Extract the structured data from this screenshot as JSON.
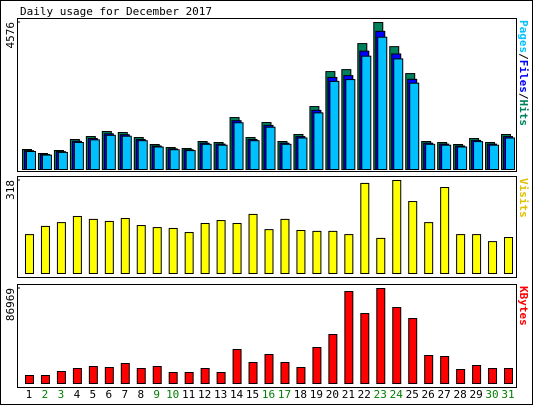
{
  "chart_data": {
    "type": "bar",
    "title": "Daily usage for December 2017",
    "categories": [
      "1",
      "2",
      "3",
      "4",
      "5",
      "6",
      "7",
      "8",
      "9",
      "10",
      "11",
      "12",
      "13",
      "14",
      "15",
      "16",
      "17",
      "18",
      "19",
      "20",
      "21",
      "22",
      "23",
      "24",
      "25",
      "26",
      "27",
      "28",
      "29",
      "30",
      "31"
    ],
    "category_colors": [
      "#000000",
      "#008000",
      "#008000",
      "#000000",
      "#000000",
      "#000000",
      "#000000",
      "#000000",
      "#008000",
      "#008000",
      "#000000",
      "#000000",
      "#000000",
      "#000000",
      "#000000",
      "#008000",
      "#008000",
      "#000000",
      "#000000",
      "#000000",
      "#000000",
      "#000000",
      "#008000",
      "#008000",
      "#000000",
      "#000000",
      "#000000",
      "#000000",
      "#000000",
      "#008000",
      "#008000"
    ],
    "legend_separator": "/",
    "panels": [
      {
        "ylim": [
          0,
          4576
        ],
        "yticks": [
          4576
        ],
        "series": [
          {
            "name": "Hits",
            "color": "#00805c",
            "values": [
              622,
              498,
              591,
              933,
              1026,
              1182,
              1151,
              995,
              778,
              684,
              653,
              871,
              840,
              1617,
              995,
              1462,
              871,
              1089,
              1959,
              3048,
              3110,
              3919,
              4576,
              3825,
              2986,
              871,
              840,
              778,
              964,
              840,
              1089
            ]
          },
          {
            "name": "Files",
            "color": "#0000ff",
            "values": [
              585,
              468,
              556,
              877,
              964,
              1111,
              1082,
              935,
              731,
              643,
              614,
              819,
              790,
              1520,
              935,
              1374,
              819,
              1024,
              1841,
              2865,
              2923,
              3684,
              4301,
              3596,
              2807,
              819,
              790,
              731,
              906,
              790,
              1024
            ]
          },
          {
            "name": "Pages",
            "color": "#00c0ff",
            "values": [
              560,
              448,
              532,
              840,
              923,
              1064,
              1036,
              896,
              700,
              616,
              588,
              784,
              756,
              1455,
              896,
              1316,
              784,
              980,
              1763,
              2743,
              2799,
              3527,
              4118,
              3443,
              2687,
              784,
              756,
              700,
              868,
              756,
              980
            ]
          }
        ]
      },
      {
        "ylim": [
          0,
          318
        ],
        "yticks": [
          318
        ],
        "series": [
          {
            "name": "Visits",
            "color": "#ffff00",
            "label_color": "#e0c000",
            "values": [
              133,
              161,
              174,
              195,
              185,
              178,
              188,
              164,
              157,
              154,
              140,
              171,
              181,
              171,
              202,
              150,
              185,
              147,
              144,
              144,
              133,
              308,
              120,
              318,
              246,
              174,
              294,
              133,
              133,
              109,
              123
            ]
          }
        ]
      },
      {
        "ylim": [
          0,
          86969
        ],
        "yticks": [
          86969
        ],
        "series": [
          {
            "name": "KBytes",
            "color": "#ff0000",
            "values": [
              7320,
              7320,
              10980,
              13725,
              15555,
              14640,
              18300,
              13725,
              15555,
              10065,
              10065,
              13725,
              10065,
              31110,
              19215,
              26535,
              19215,
              14640,
              32940,
              44835,
              84180,
              64050,
              86969,
              69540,
              59475,
              25620,
              24705,
              12810,
              16470,
              13725,
              13725
            ]
          }
        ]
      }
    ]
  }
}
